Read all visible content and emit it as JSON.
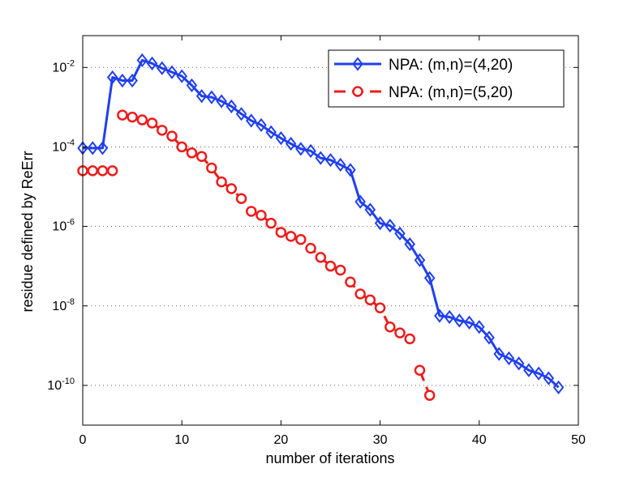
{
  "chart_data": {
    "type": "line",
    "title": "",
    "xlabel": "number of iterations",
    "ylabel": "residue defined by ReErr",
    "xlim": [
      0,
      50
    ],
    "ylog_exp_range": [
      -11,
      -1.2
    ],
    "yscale": "log",
    "grid": "horizontal-dotted",
    "legend_position": "top-right",
    "xticks": [
      0,
      10,
      20,
      30,
      40,
      50
    ],
    "yticks": [
      {
        "base": "10",
        "exp": "-10",
        "value_exp": -10
      },
      {
        "base": "10",
        "exp": "-8",
        "value_exp": -8
      },
      {
        "base": "10",
        "exp": "-6",
        "value_exp": -6
      },
      {
        "base": "10",
        "exp": "-4",
        "value_exp": -4
      },
      {
        "base": "10",
        "exp": "-2",
        "value_exp": -2
      }
    ],
    "series": [
      {
        "name": "NPA: (m,n)=(4,20)",
        "color": "#1f3ff0",
        "marker": "diamond",
        "linestyle": "solid",
        "x": [
          0,
          1,
          2,
          3,
          4,
          5,
          6,
          7,
          8,
          9,
          10,
          11,
          12,
          13,
          14,
          15,
          16,
          17,
          18,
          19,
          20,
          21,
          22,
          23,
          24,
          25,
          26,
          27,
          28,
          29,
          30,
          31,
          32,
          33,
          34,
          35,
          36,
          37,
          38,
          39,
          40,
          41,
          42,
          43,
          44,
          45,
          46,
          47,
          48
        ],
        "log10_y": [
          -4.03,
          -4.03,
          -4.03,
          -2.25,
          -2.33,
          -2.33,
          -1.82,
          -1.9,
          -2.02,
          -2.12,
          -2.22,
          -2.45,
          -2.72,
          -2.75,
          -2.85,
          -2.98,
          -3.17,
          -3.34,
          -3.45,
          -3.63,
          -3.78,
          -3.92,
          -4.05,
          -4.1,
          -4.28,
          -4.33,
          -4.45,
          -4.58,
          -5.38,
          -5.58,
          -5.92,
          -5.98,
          -6.18,
          -6.45,
          -6.85,
          -7.3,
          -8.25,
          -8.28,
          -8.37,
          -8.42,
          -8.53,
          -8.8,
          -9.21,
          -9.32,
          -9.45,
          -9.62,
          -9.7,
          -9.82,
          -10.05
        ],
        "segments": [
          [
            0,
            48
          ]
        ]
      },
      {
        "name": "NPA: (m,n)=(5,20)",
        "color": "#ee1c1c",
        "marker": "circle",
        "linestyle": "dashed",
        "x": [
          0,
          1,
          2,
          3,
          4,
          5,
          6,
          7,
          8,
          9,
          10,
          11,
          12,
          13,
          14,
          15,
          16,
          17,
          18,
          19,
          20,
          21,
          22,
          23,
          24,
          25,
          26,
          27,
          28,
          29,
          30,
          31,
          32,
          33,
          34,
          35
        ],
        "log10_y": [
          -4.6,
          -4.6,
          -4.6,
          -4.6,
          -3.2,
          -3.25,
          -3.32,
          -3.4,
          -3.58,
          -3.73,
          -4.0,
          -4.15,
          -4.24,
          -4.53,
          -4.88,
          -5.05,
          -5.3,
          -5.62,
          -5.72,
          -5.92,
          -6.15,
          -6.25,
          -6.33,
          -6.55,
          -6.78,
          -7.0,
          -7.1,
          -7.4,
          -7.7,
          -7.85,
          -8.05,
          -8.53,
          -8.68,
          -8.83,
          -9.62,
          -10.25
        ],
        "segments": [
          [
            0,
            3
          ],
          [
            4,
            33
          ],
          [
            34,
            35
          ]
        ]
      }
    ]
  }
}
